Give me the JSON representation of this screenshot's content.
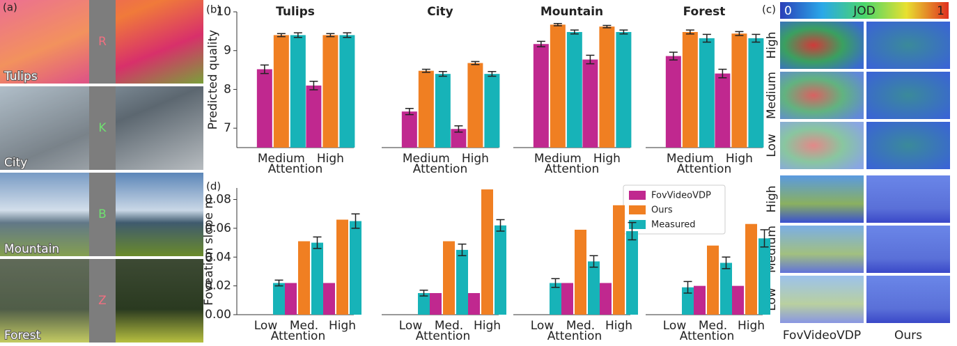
{
  "panel_labels": {
    "a": "(a)",
    "b": "(b)",
    "c": "(c)",
    "d": "(d)"
  },
  "panel_a": {
    "images": [
      {
        "name": "Tulips",
        "letter": "R"
      },
      {
        "name": "City",
        "letter": "K"
      },
      {
        "name": "Mountain",
        "letter": "B"
      },
      {
        "name": "Forest",
        "letter": "Z"
      }
    ]
  },
  "panel_c": {
    "colorbar": {
      "label": "JOD",
      "ticks": [
        0,
        1
      ]
    },
    "rows": [
      "High",
      "Medium",
      "Low"
    ],
    "columns": [
      "FovVideoVDP",
      "Ours"
    ]
  },
  "chart_data": [
    {
      "type": "bar",
      "title": "Tulips",
      "ylabel": "Predicted quality",
      "xlabel": "Attention",
      "categories": [
        "Medium",
        "High"
      ],
      "ylim": [
        6.5,
        10
      ],
      "yticks": [
        7,
        8,
        9,
        10
      ],
      "series": [
        {
          "name": "FovVideoVDP",
          "color": "#c0288f",
          "values": [
            8.52,
            8.1
          ],
          "errors": [
            0.11,
            0.11
          ]
        },
        {
          "name": "Ours",
          "color": "#f07f22",
          "values": [
            9.4,
            9.4
          ],
          "errors": [
            0.04,
            0.04
          ]
        },
        {
          "name": "Measured",
          "color": "#17b3b8",
          "values": [
            9.4,
            9.4
          ],
          "errors": [
            0.06,
            0.06
          ]
        }
      ]
    },
    {
      "type": "bar",
      "title": "City",
      "xlabel": "Attention",
      "categories": [
        "Medium",
        "High"
      ],
      "ylim": [
        6.5,
        10
      ],
      "series": [
        {
          "name": "FovVideoVDP",
          "color": "#c0288f",
          "values": [
            7.43,
            6.98
          ],
          "errors": [
            0.08,
            0.08
          ]
        },
        {
          "name": "Ours",
          "color": "#f07f22",
          "values": [
            8.48,
            8.68
          ],
          "errors": [
            0.04,
            0.04
          ]
        },
        {
          "name": "Measured",
          "color": "#17b3b8",
          "values": [
            8.4,
            8.4
          ],
          "errors": [
            0.06,
            0.06
          ]
        }
      ]
    },
    {
      "type": "bar",
      "title": "Mountain",
      "xlabel": "Attention",
      "categories": [
        "Medium",
        "High"
      ],
      "ylim": [
        6.5,
        10
      ],
      "series": [
        {
          "name": "FovVideoVDP",
          "color": "#c0288f",
          "values": [
            9.17,
            8.77
          ],
          "errors": [
            0.07,
            0.11
          ]
        },
        {
          "name": "Ours",
          "color": "#f07f22",
          "values": [
            9.67,
            9.62
          ],
          "errors": [
            0.03,
            0.03
          ]
        },
        {
          "name": "Measured",
          "color": "#17b3b8",
          "values": [
            9.48,
            9.48
          ],
          "errors": [
            0.05,
            0.05
          ]
        }
      ]
    },
    {
      "type": "bar",
      "title": "Forest",
      "xlabel": "Attention",
      "categories": [
        "Medium",
        "High"
      ],
      "ylim": [
        6.5,
        10
      ],
      "series": [
        {
          "name": "FovVideoVDP",
          "color": "#c0288f",
          "values": [
            8.86,
            8.41
          ],
          "errors": [
            0.1,
            0.11
          ]
        },
        {
          "name": "Ours",
          "color": "#f07f22",
          "values": [
            9.48,
            9.44
          ],
          "errors": [
            0.05,
            0.05
          ]
        },
        {
          "name": "Measured",
          "color": "#17b3b8",
          "values": [
            9.32,
            9.32
          ],
          "errors": [
            0.1,
            0.1
          ]
        }
      ]
    },
    {
      "type": "bar",
      "ylabel": "Foveation slope m",
      "xlabel": "Attention",
      "categories": [
        "Low",
        "Med.",
        "High"
      ],
      "ylim": [
        0,
        0.088
      ],
      "yticks": [
        {
          "value": 0,
          "label": "0.00"
        },
        0.02,
        0.04,
        0.06,
        0.08
      ],
      "legend": "upper right",
      "series": [
        {
          "name": "FovVideoVDP",
          "color": "#c0288f",
          "values": [
            null,
            0.022,
            0.022
          ],
          "errors": [
            null,
            null,
            null
          ]
        },
        {
          "name": "Ours",
          "color": "#f07f22",
          "values": [
            null,
            0.051,
            0.066
          ],
          "errors": [
            null,
            null,
            null
          ]
        },
        {
          "name": "Measured",
          "color": "#17b3b8",
          "values": [
            0.022,
            0.05,
            0.065
          ],
          "errors": [
            0.002,
            0.004,
            0.005
          ]
        }
      ]
    },
    {
      "type": "bar",
      "xlabel": "Attention",
      "categories": [
        "Low",
        "Med.",
        "High"
      ],
      "ylim": [
        0,
        0.088
      ],
      "series": [
        {
          "name": "FovVideoVDP",
          "color": "#c0288f",
          "values": [
            null,
            0.015,
            0.015
          ],
          "errors": [
            null,
            null,
            null
          ]
        },
        {
          "name": "Ours",
          "color": "#f07f22",
          "values": [
            null,
            0.051,
            0.087
          ],
          "errors": [
            null,
            null,
            null
          ]
        },
        {
          "name": "Measured",
          "color": "#17b3b8",
          "values": [
            0.015,
            0.045,
            0.062
          ],
          "errors": [
            0.002,
            0.004,
            0.004
          ]
        }
      ]
    },
    {
      "type": "bar",
      "xlabel": "Attention",
      "categories": [
        "Low",
        "Med.",
        "High"
      ],
      "ylim": [
        0,
        0.088
      ],
      "series": [
        {
          "name": "FovVideoVDP",
          "color": "#c0288f",
          "values": [
            null,
            0.022,
            0.022
          ],
          "errors": [
            null,
            null,
            null
          ]
        },
        {
          "name": "Ours",
          "color": "#f07f22",
          "values": [
            null,
            0.059,
            0.076
          ],
          "errors": [
            null,
            null,
            null
          ]
        },
        {
          "name": "Measured",
          "color": "#17b3b8",
          "values": [
            0.022,
            0.037,
            0.058
          ],
          "errors": [
            0.003,
            0.004,
            0.006
          ]
        }
      ]
    },
    {
      "type": "bar",
      "xlabel": "Attention",
      "categories": [
        "Low",
        "Med.",
        "High"
      ],
      "ylim": [
        0,
        0.088
      ],
      "series": [
        {
          "name": "FovVideoVDP",
          "color": "#c0288f",
          "values": [
            null,
            0.02,
            0.02
          ],
          "errors": [
            null,
            null,
            null
          ]
        },
        {
          "name": "Ours",
          "color": "#f07f22",
          "values": [
            null,
            0.048,
            0.063
          ],
          "errors": [
            null,
            null,
            null
          ]
        },
        {
          "name": "Measured",
          "color": "#17b3b8",
          "values": [
            0.019,
            0.036,
            0.053
          ],
          "errors": [
            0.004,
            0.004,
            0.006
          ]
        }
      ]
    }
  ]
}
